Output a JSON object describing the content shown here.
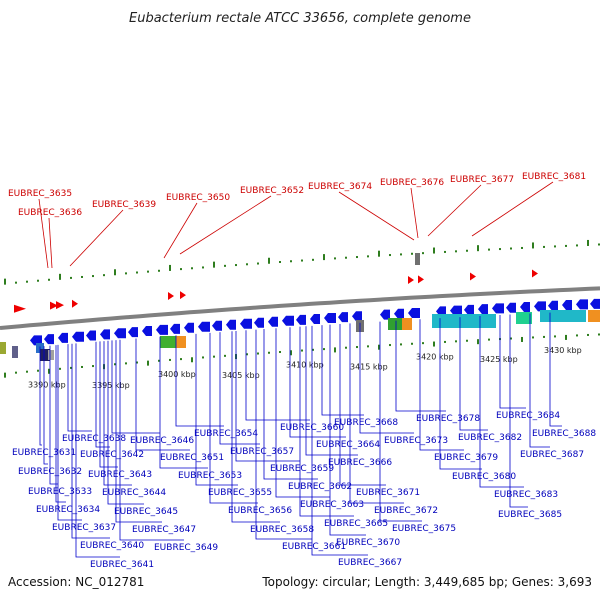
{
  "title": "Eubacterium rectale ATCC 33656, complete genome",
  "footer": {
    "accession": "Accession: NC_012781",
    "summary": "Topology: circular; Length: 3,449,685 bp; Genes: 3,693"
  },
  "kbp_ticks": [
    "3390 kbp",
    "3395 kbp",
    "3400 kbp",
    "3405 kbp",
    "3410 kbp",
    "3415 kbp",
    "3420 kbp",
    "3425 kbp",
    "3430 kbp"
  ],
  "colors": {
    "forward_gene": "#ee0000",
    "reverse_gene": "#0a10e0",
    "label_forward": "#cc0000",
    "label_reverse": "#0000bb",
    "gc_skew": "#2e7d1e",
    "backbone": "#808080"
  },
  "labels_top": [
    "EUBREC_3635",
    "EUBREC_3636",
    "EUBREC_3639",
    "EUBREC_3650",
    "EUBREC_3652",
    "EUBREC_3674",
    "EUBREC_3676",
    "EUBREC_3677",
    "EUBREC_3681"
  ],
  "labels_bottom": [
    "EUBREC_3631",
    "EUBREC_3632",
    "EUBREC_3633",
    "EUBREC_3634",
    "EUBREC_3637",
    "EUBREC_3638",
    "EUBREC_3640",
    "EUBREC_3641",
    "EUBREC_3642",
    "EUBREC_3643",
    "EUBREC_3644",
    "EUBREC_3645",
    "EUBREC_3646",
    "EUBREC_3647",
    "EUBREC_3649",
    "EUBREC_3651",
    "EUBREC_3653",
    "EUBREC_3654",
    "EUBREC_3655",
    "EUBREC_3656",
    "EUBREC_3657",
    "EUBREC_3658",
    "EUBREC_3659",
    "EUBREC_3660",
    "EUBREC_3661",
    "EUBREC_3662",
    "EUBREC_3663",
    "EUBREC_3664",
    "EUBREC_3665",
    "EUBREC_3666",
    "EUBREC_3667",
    "EUBREC_3668",
    "EUBREC_3670",
    "EUBREC_3671",
    "EUBREC_3672",
    "EUBREC_3673",
    "EUBREC_3675",
    "EUBREC_3678",
    "EUBREC_3679",
    "EUBREC_3680",
    "EUBREC_3682",
    "EUBREC_3683",
    "EUBREC_3684",
    "EUBREC_3685",
    "EUBREC_3687",
    "EUBREC_3688"
  ]
}
